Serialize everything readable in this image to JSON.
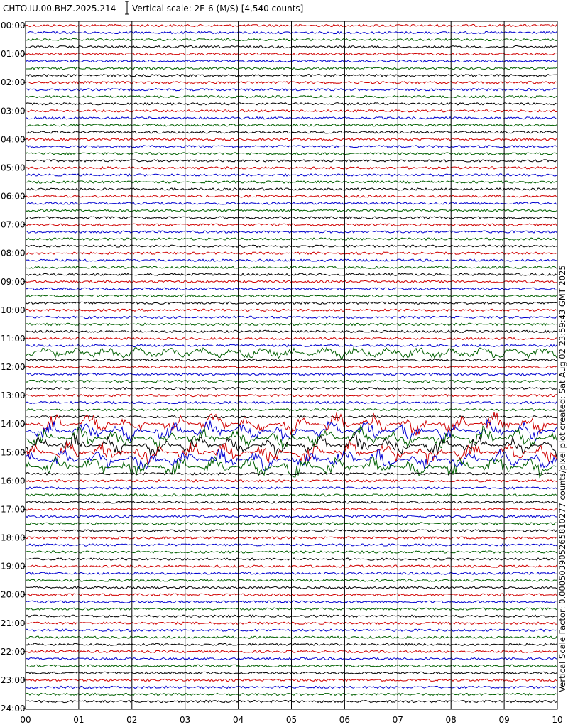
{
  "header": {
    "station": "CHTO.IU.00.BHZ.2025.214",
    "scale": "Vertical scale: 2E-6 (M/S) [4,540 counts]"
  },
  "side_text": "Vertical Scale Factor: 0.000503905265810277 counts/pixel plot created: Sat Aug 02 23:59:43 GMT 2025",
  "y_labels": [
    "00:00",
    "01:00",
    "02:00",
    "03:00",
    "04:00",
    "05:00",
    "06:00",
    "07:00",
    "08:00",
    "09:00",
    "10:00",
    "11:00",
    "12:00",
    "13:00",
    "14:00",
    "15:00",
    "16:00",
    "17:00",
    "18:00",
    "19:00",
    "20:00",
    "21:00",
    "22:00",
    "23:00",
    "24:00"
  ],
  "x_labels": [
    "00",
    "01",
    "02",
    "03",
    "04",
    "05",
    "06",
    "07",
    "08",
    "09",
    "10"
  ]
}
